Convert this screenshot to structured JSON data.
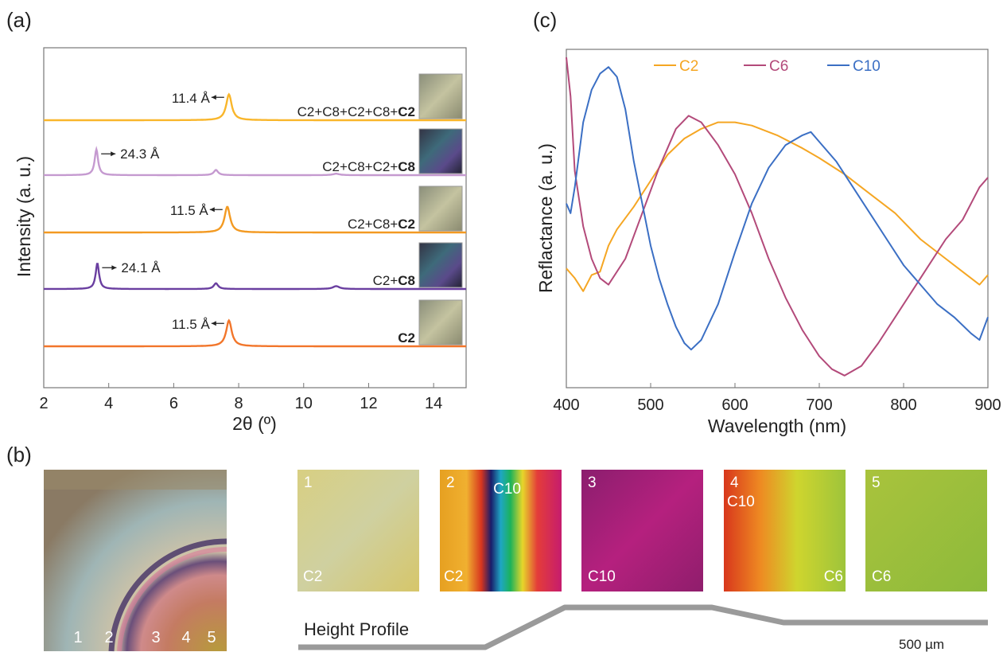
{
  "panels": {
    "a": "(a)",
    "b": "(b)",
    "c": "(c)"
  },
  "chart_data": [
    {
      "type": "line",
      "panel": "a",
      "xlabel": "2θ (º)",
      "ylabel": "Intensity (a. u.)",
      "xlim": [
        2,
        15
      ],
      "xticks": [
        "2",
        "4",
        "6",
        "8",
        "10",
        "12",
        "14"
      ],
      "series": [
        {
          "label": "C2+C8+C2+C8+C2",
          "label_plain": "C2+C8+C2+C8+",
          "label_bold": "C2",
          "color": "#f9b62b",
          "offset": 4,
          "peaks": [
            {
              "x": 7.7,
              "h": 0.9,
              "w": 0.13
            }
          ],
          "annotation": "11.4 Å",
          "arrow": "left"
        },
        {
          "label": "C2+C8+C2+C8",
          "label_plain": "C2+C8+C2+",
          "label_bold": "C8",
          "color": "#c59ad0",
          "offset": 3,
          "peaks": [
            {
              "x": 3.62,
              "h": 0.9,
              "w": 0.08
            },
            {
              "x": 7.3,
              "h": 0.18,
              "w": 0.1
            },
            {
              "x": 11.0,
              "h": 0.05,
              "w": 0.15
            }
          ],
          "annotation": "24.3 Å",
          "arrow": "right"
        },
        {
          "label": "C2+C8+C2",
          "label_plain": "C2+C8+",
          "label_bold": "C2",
          "color": "#f39a22",
          "offset": 2,
          "peaks": [
            {
              "x": 7.65,
              "h": 0.9,
              "w": 0.13
            }
          ],
          "annotation": "11.5 Å",
          "arrow": "left"
        },
        {
          "label": "C2+C8",
          "label_plain": "C2+",
          "label_bold": "C8",
          "color": "#6a3fa0",
          "offset": 1,
          "peaks": [
            {
              "x": 3.65,
              "h": 0.9,
              "w": 0.08
            },
            {
              "x": 7.3,
              "h": 0.2,
              "w": 0.1
            },
            {
              "x": 11.0,
              "h": 0.1,
              "w": 0.15
            }
          ],
          "annotation": "24.1 Å",
          "arrow": "right"
        },
        {
          "label": "C2",
          "label_plain": "",
          "label_bold": "C2",
          "color": "#f2762b",
          "offset": 0,
          "peaks": [
            {
              "x": 7.7,
              "h": 0.9,
              "w": 0.13
            }
          ],
          "annotation": "11.5 Å",
          "arrow": "left"
        }
      ]
    },
    {
      "type": "line",
      "panel": "c",
      "xlabel": "Wavelength (nm)",
      "ylabel": "Reflactance (a. u.)",
      "xlim": [
        400,
        900
      ],
      "xticks": [
        "400",
        "500",
        "600",
        "700",
        "800",
        "900"
      ],
      "series": [
        {
          "name": "C2",
          "color": "#f5a623",
          "points": [
            [
              400,
              0.35
            ],
            [
              410,
              0.32
            ],
            [
              420,
              0.28
            ],
            [
              430,
              0.33
            ],
            [
              440,
              0.34
            ],
            [
              450,
              0.42
            ],
            [
              460,
              0.47
            ],
            [
              480,
              0.54
            ],
            [
              500,
              0.62
            ],
            [
              520,
              0.7
            ],
            [
              540,
              0.75
            ],
            [
              560,
              0.78
            ],
            [
              580,
              0.8
            ],
            [
              600,
              0.8
            ],
            [
              620,
              0.79
            ],
            [
              650,
              0.76
            ],
            [
              680,
              0.72
            ],
            [
              700,
              0.69
            ],
            [
              730,
              0.64
            ],
            [
              760,
              0.58
            ],
            [
              790,
              0.52
            ],
            [
              820,
              0.44
            ],
            [
              850,
              0.38
            ],
            [
              870,
              0.34
            ],
            [
              890,
              0.3
            ],
            [
              900,
              0.33
            ]
          ]
        },
        {
          "name": "C6",
          "color": "#b34a7a",
          "points": [
            [
              400,
              1.0
            ],
            [
              405,
              0.88
            ],
            [
              410,
              0.65
            ],
            [
              420,
              0.48
            ],
            [
              430,
              0.38
            ],
            [
              440,
              0.32
            ],
            [
              450,
              0.3
            ],
            [
              470,
              0.38
            ],
            [
              490,
              0.52
            ],
            [
              510,
              0.66
            ],
            [
              530,
              0.78
            ],
            [
              545,
              0.82
            ],
            [
              560,
              0.8
            ],
            [
              580,
              0.73
            ],
            [
              600,
              0.64
            ],
            [
              620,
              0.52
            ],
            [
              640,
              0.38
            ],
            [
              660,
              0.26
            ],
            [
              680,
              0.16
            ],
            [
              700,
              0.08
            ],
            [
              715,
              0.04
            ],
            [
              730,
              0.02
            ],
            [
              750,
              0.05
            ],
            [
              770,
              0.12
            ],
            [
              790,
              0.2
            ],
            [
              810,
              0.28
            ],
            [
              830,
              0.36
            ],
            [
              850,
              0.44
            ],
            [
              870,
              0.5
            ],
            [
              890,
              0.6
            ],
            [
              900,
              0.63
            ]
          ]
        },
        {
          "name": "C10",
          "color": "#3b6fc4",
          "points": [
            [
              400,
              0.55
            ],
            [
              405,
              0.52
            ],
            [
              410,
              0.6
            ],
            [
              420,
              0.8
            ],
            [
              430,
              0.9
            ],
            [
              440,
              0.95
            ],
            [
              450,
              0.97
            ],
            [
              460,
              0.94
            ],
            [
              470,
              0.84
            ],
            [
              480,
              0.68
            ],
            [
              490,
              0.55
            ],
            [
              500,
              0.42
            ],
            [
              510,
              0.32
            ],
            [
              520,
              0.24
            ],
            [
              530,
              0.17
            ],
            [
              540,
              0.12
            ],
            [
              548,
              0.1
            ],
            [
              560,
              0.13
            ],
            [
              580,
              0.24
            ],
            [
              600,
              0.4
            ],
            [
              620,
              0.55
            ],
            [
              640,
              0.66
            ],
            [
              660,
              0.73
            ],
            [
              680,
              0.76
            ],
            [
              690,
              0.77
            ],
            [
              700,
              0.74
            ],
            [
              720,
              0.68
            ],
            [
              740,
              0.6
            ],
            [
              760,
              0.52
            ],
            [
              780,
              0.44
            ],
            [
              800,
              0.36
            ],
            [
              820,
              0.3
            ],
            [
              840,
              0.24
            ],
            [
              860,
              0.2
            ],
            [
              880,
              0.15
            ],
            [
              890,
              0.13
            ],
            [
              900,
              0.2
            ]
          ]
        }
      ]
    }
  ],
  "panel_b": {
    "overview_labels": [
      "1",
      "2",
      "3",
      "4",
      "5"
    ],
    "thumbs": [
      {
        "num": "1",
        "labels": [
          "C2"
        ]
      },
      {
        "num": "2",
        "labels": [
          "C10",
          "C2"
        ]
      },
      {
        "num": "3",
        "labels": [
          "C10"
        ]
      },
      {
        "num": "4",
        "labels": [
          "C10",
          "C6"
        ]
      },
      {
        "num": "5",
        "labels": [
          "C6"
        ]
      }
    ],
    "height_profile_label": "Height Profile",
    "scale_label": "500 µm"
  }
}
